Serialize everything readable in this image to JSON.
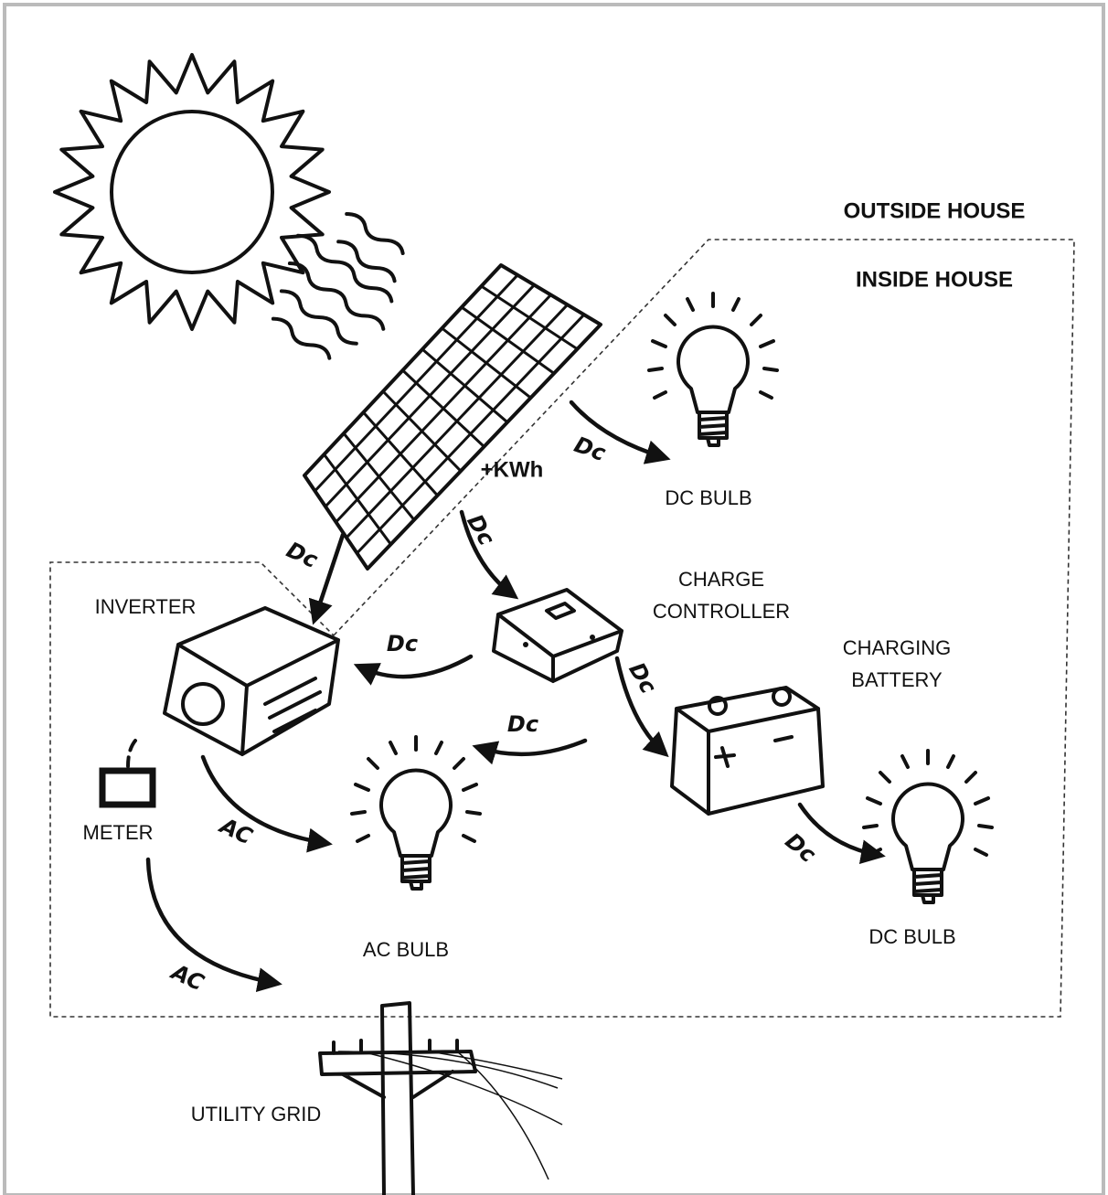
{
  "regions": [
    {
      "label": "OUTSIDE HOUSE"
    },
    {
      "label": "INSIDE HOUSE"
    }
  ],
  "nodes": [
    {
      "label": [
        "+KWh"
      ]
    },
    {
      "label": [
        "DC BULB"
      ]
    },
    {
      "label": [
        "CHARGE",
        "CONTROLLER"
      ]
    },
    {
      "label": [
        "INVERTER"
      ]
    },
    {
      "label": [
        "CHARGING",
        "BATTERY"
      ]
    },
    {
      "label": [
        "METER"
      ]
    },
    {
      "label": [
        "AC BULB"
      ]
    },
    {
      "label": [
        "DC BULB"
      ]
    },
    {
      "label": [
        "UTILITY GRID"
      ]
    }
  ],
  "arrows": [
    {
      "label": "Dc"
    },
    {
      "label": "Dc"
    },
    {
      "label": "Dc"
    },
    {
      "label": "Dc"
    },
    {
      "label": "Dc"
    },
    {
      "label": "Dc"
    },
    {
      "label": "Dc"
    },
    {
      "label": "AC"
    },
    {
      "label": "AC"
    }
  ]
}
